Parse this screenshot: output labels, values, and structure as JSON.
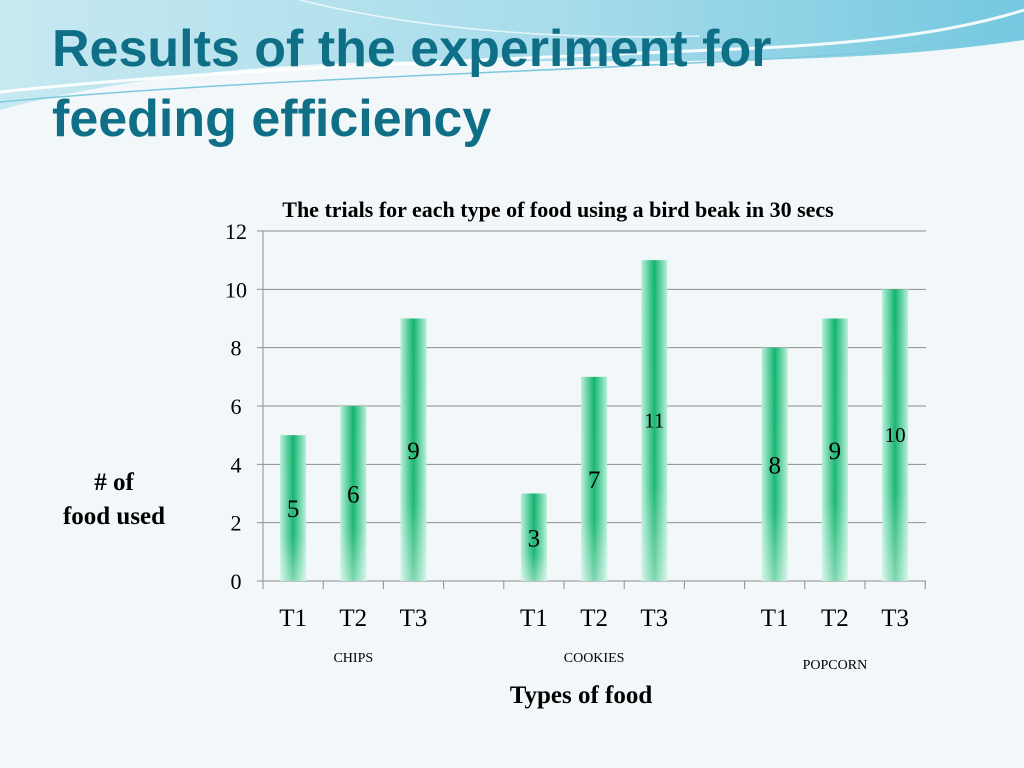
{
  "slide": {
    "title": "Results of the experiment for feeding efficiency"
  },
  "colors": {
    "title": "#0e6f86",
    "bar_dark": "#12b46e",
    "bar_light": "#b8f0da",
    "grid": "#8c8c8c"
  },
  "chart_data": {
    "type": "bar",
    "title": "The trials for each type of food using a bird beak in 30 secs",
    "xlabel": "Types of food",
    "ylabel": "# of food used",
    "ylim": [
      0,
      12
    ],
    "yticks": [
      "0",
      "2",
      "4",
      "6",
      "8",
      "10",
      "12"
    ],
    "grid": true,
    "legend": "none",
    "groups": [
      {
        "name": "CHIPS",
        "categories": [
          "T1",
          "T2",
          "T3"
        ],
        "values": [
          5,
          6,
          9
        ]
      },
      {
        "name": "COOKIES",
        "categories": [
          "T1",
          "T2",
          "T3"
        ],
        "values": [
          3,
          7,
          11
        ]
      },
      {
        "name": "POPCORN",
        "categories": [
          "T1",
          "T2",
          "T3"
        ],
        "values": [
          8,
          9,
          10
        ]
      }
    ]
  }
}
